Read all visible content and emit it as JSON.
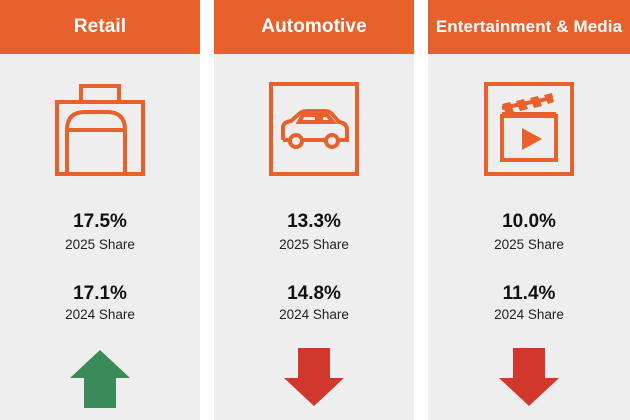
{
  "colors": {
    "header": "#e8612c",
    "panel": "#eeeeee",
    "up": "#3a8a5a",
    "down": "#d1372c"
  },
  "columns": [
    {
      "title": "Retail",
      "icon": "shopping-bag-icon",
      "share_2025": "17.5%",
      "label_2025": "2025 Share",
      "share_2024": "17.1%",
      "label_2024": "2024 Share",
      "trend": "up"
    },
    {
      "title": "Automotive",
      "icon": "car-icon",
      "share_2025": "13.3%",
      "label_2025": "2025 Share",
      "share_2024": "14.8%",
      "label_2024": "2024 Share",
      "trend": "down"
    },
    {
      "title": "Entertainment & Media",
      "icon": "clapperboard-play-icon",
      "share_2025": "10.0%",
      "label_2025": "2025 Share",
      "share_2024": "11.4%",
      "label_2024": "2024 Share",
      "trend": "down"
    }
  ]
}
